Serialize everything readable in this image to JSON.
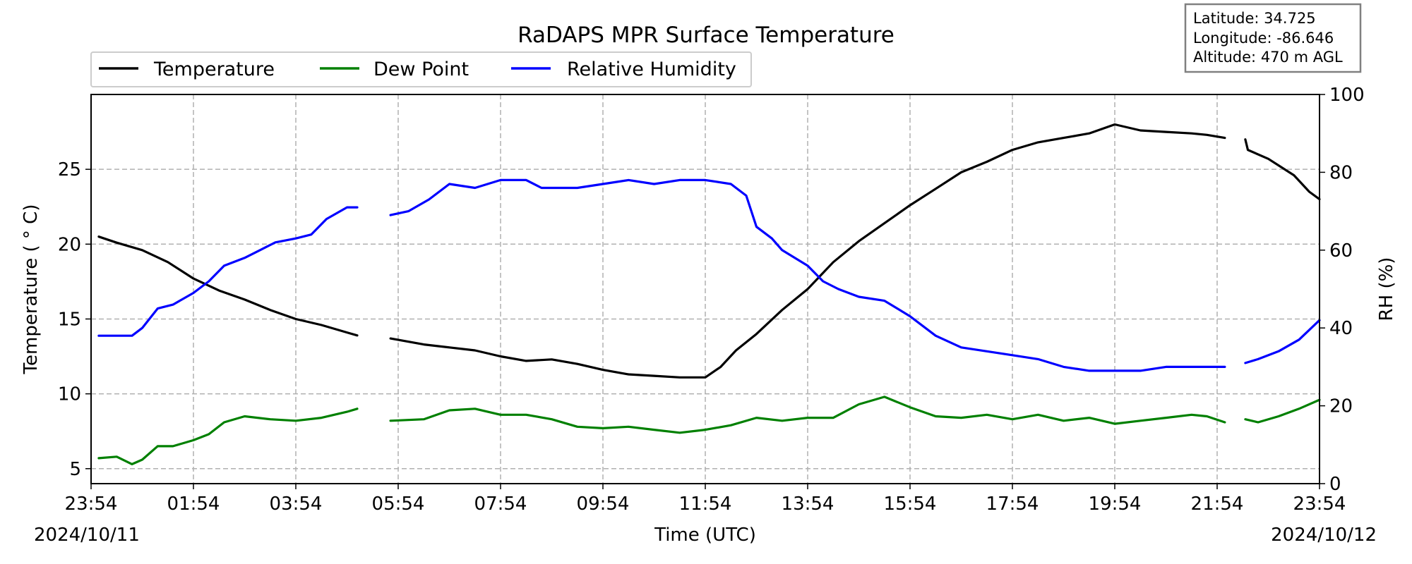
{
  "chart_data": {
    "type": "line",
    "title": "RaDAPS MPR Surface Temperature",
    "xlabel": "Time (UTC)",
    "ylabel_left": "Temperature ( ° C)",
    "ylabel_right": "RH (%)",
    "x_ticks": [
      "23:54",
      "01:54",
      "03:54",
      "05:54",
      "07:54",
      "09:54",
      "11:54",
      "13:54",
      "15:54",
      "17:54",
      "19:54",
      "21:54",
      "23:54"
    ],
    "x_range_hours": [
      0,
      24
    ],
    "start_date": "2024/10/11",
    "end_date": "2024/10/12",
    "ylim_left": [
      4,
      30
    ],
    "yticks_left": [
      5,
      10,
      15,
      20,
      25
    ],
    "ylim_right": [
      0,
      100
    ],
    "yticks_right": [
      0,
      20,
      40,
      60,
      80,
      100
    ],
    "grid": true,
    "legend_position": "top-left",
    "info_box": [
      "Latitude: 34.725",
      "Longitude: -86.646",
      "Altitude: 470 m AGL"
    ],
    "series": [
      {
        "name": "Temperature",
        "axis": "left",
        "color": "#000000",
        "segments": [
          [
            [
              0.15,
              20.5
            ],
            [
              0.5,
              20.1
            ],
            [
              1.0,
              19.6
            ],
            [
              1.5,
              18.8
            ],
            [
              2.0,
              17.7
            ],
            [
              2.5,
              16.9
            ],
            [
              3.0,
              16.3
            ],
            [
              3.5,
              15.6
            ],
            [
              4.0,
              15.0
            ],
            [
              4.5,
              14.6
            ],
            [
              5.0,
              14.1
            ],
            [
              5.2,
              13.9
            ]
          ],
          [
            [
              5.85,
              13.7
            ],
            [
              6.5,
              13.3
            ],
            [
              7.0,
              13.1
            ],
            [
              7.5,
              12.9
            ],
            [
              8.0,
              12.5
            ],
            [
              8.5,
              12.2
            ],
            [
              9.0,
              12.3
            ],
            [
              9.5,
              12.0
            ],
            [
              10.0,
              11.6
            ],
            [
              10.5,
              11.3
            ],
            [
              11.0,
              11.2
            ],
            [
              11.5,
              11.1
            ],
            [
              12.0,
              11.1
            ],
            [
              12.3,
              11.8
            ],
            [
              12.6,
              12.9
            ],
            [
              13.0,
              14.0
            ],
            [
              13.5,
              15.6
            ],
            [
              14.0,
              17.0
            ],
            [
              14.5,
              18.8
            ],
            [
              15.0,
              20.2
            ],
            [
              15.5,
              21.4
            ],
            [
              16.0,
              22.6
            ],
            [
              16.5,
              23.7
            ],
            [
              17.0,
              24.8
            ],
            [
              17.5,
              25.5
            ],
            [
              18.0,
              26.3
            ],
            [
              18.5,
              26.8
            ],
            [
              19.0,
              27.1
            ],
            [
              19.5,
              27.4
            ],
            [
              20.0,
              28.0
            ],
            [
              20.5,
              27.6
            ],
            [
              21.0,
              27.5
            ],
            [
              21.5,
              27.4
            ],
            [
              21.8,
              27.3
            ],
            [
              22.15,
              27.1
            ]
          ],
          [
            [
              22.55,
              27.0
            ],
            [
              22.6,
              26.3
            ],
            [
              23.0,
              25.7
            ],
            [
              23.5,
              24.6
            ],
            [
              23.8,
              23.5
            ],
            [
              24.0,
              23.0
            ]
          ]
        ]
      },
      {
        "name": "Dew Point",
        "axis": "left",
        "color": "#008000",
        "segments": [
          [
            [
              0.15,
              5.7
            ],
            [
              0.5,
              5.8
            ],
            [
              0.8,
              5.3
            ],
            [
              1.0,
              5.6
            ],
            [
              1.3,
              6.5
            ],
            [
              1.6,
              6.5
            ],
            [
              2.0,
              6.9
            ],
            [
              2.3,
              7.3
            ],
            [
              2.6,
              8.1
            ],
            [
              3.0,
              8.5
            ],
            [
              3.5,
              8.3
            ],
            [
              4.0,
              8.2
            ],
            [
              4.5,
              8.4
            ],
            [
              5.0,
              8.8
            ],
            [
              5.2,
              9.0
            ]
          ],
          [
            [
              5.85,
              8.2
            ],
            [
              6.5,
              8.3
            ],
            [
              7.0,
              8.9
            ],
            [
              7.5,
              9.0
            ],
            [
              8.0,
              8.6
            ],
            [
              8.5,
              8.6
            ],
            [
              9.0,
              8.3
            ],
            [
              9.5,
              7.8
            ],
            [
              10.0,
              7.7
            ],
            [
              10.5,
              7.8
            ],
            [
              11.0,
              7.6
            ],
            [
              11.5,
              7.4
            ],
            [
              12.0,
              7.6
            ],
            [
              12.5,
              7.9
            ],
            [
              13.0,
              8.4
            ],
            [
              13.5,
              8.2
            ],
            [
              14.0,
              8.4
            ],
            [
              14.5,
              8.4
            ],
            [
              15.0,
              9.3
            ],
            [
              15.5,
              9.8
            ],
            [
              16.0,
              9.1
            ],
            [
              16.5,
              8.5
            ],
            [
              17.0,
              8.4
            ],
            [
              17.5,
              8.6
            ],
            [
              18.0,
              8.3
            ],
            [
              18.5,
              8.6
            ],
            [
              19.0,
              8.2
            ],
            [
              19.5,
              8.4
            ],
            [
              20.0,
              8.0
            ],
            [
              20.5,
              8.2
            ],
            [
              21.0,
              8.4
            ],
            [
              21.5,
              8.6
            ],
            [
              21.8,
              8.5
            ],
            [
              22.15,
              8.1
            ]
          ],
          [
            [
              22.55,
              8.3
            ],
            [
              22.8,
              8.1
            ],
            [
              23.2,
              8.5
            ],
            [
              23.6,
              9.0
            ],
            [
              24.0,
              9.6
            ]
          ]
        ]
      },
      {
        "name": "Relative Humidity",
        "axis": "right",
        "color": "#0000ff",
        "segments": [
          [
            [
              0.15,
              38
            ],
            [
              0.5,
              38
            ],
            [
              0.8,
              38
            ],
            [
              1.0,
              40
            ],
            [
              1.3,
              45
            ],
            [
              1.6,
              46
            ],
            [
              2.0,
              49
            ],
            [
              2.3,
              52
            ],
            [
              2.6,
              56
            ],
            [
              3.0,
              58
            ],
            [
              3.3,
              60
            ],
            [
              3.6,
              62
            ],
            [
              4.0,
              63
            ],
            [
              4.3,
              64
            ],
            [
              4.6,
              68
            ],
            [
              5.0,
              71
            ],
            [
              5.2,
              71
            ]
          ],
          [
            [
              5.85,
              69
            ],
            [
              6.2,
              70
            ],
            [
              6.6,
              73
            ],
            [
              7.0,
              77
            ],
            [
              7.5,
              76
            ],
            [
              8.0,
              78
            ],
            [
              8.5,
              78
            ],
            [
              8.8,
              76
            ],
            [
              9.0,
              76
            ],
            [
              9.5,
              76
            ],
            [
              10.0,
              77
            ],
            [
              10.5,
              78
            ],
            [
              11.0,
              77
            ],
            [
              11.5,
              78
            ],
            [
              12.0,
              78
            ],
            [
              12.5,
              77
            ],
            [
              12.8,
              74
            ],
            [
              13.0,
              66
            ],
            [
              13.3,
              63
            ],
            [
              13.5,
              60
            ],
            [
              14.0,
              56
            ],
            [
              14.3,
              52
            ],
            [
              14.6,
              50
            ],
            [
              15.0,
              48
            ],
            [
              15.5,
              47
            ],
            [
              16.0,
              43
            ],
            [
              16.5,
              38
            ],
            [
              17.0,
              35
            ],
            [
              17.5,
              34
            ],
            [
              18.0,
              33
            ],
            [
              18.5,
              32
            ],
            [
              19.0,
              30
            ],
            [
              19.5,
              29
            ],
            [
              20.0,
              29
            ],
            [
              20.5,
              29
            ],
            [
              21.0,
              30
            ],
            [
              21.5,
              30
            ],
            [
              21.8,
              30
            ],
            [
              22.15,
              30
            ]
          ],
          [
            [
              22.55,
              31
            ],
            [
              22.8,
              32
            ],
            [
              23.2,
              34
            ],
            [
              23.6,
              37
            ],
            [
              24.0,
              42
            ]
          ]
        ]
      }
    ]
  }
}
